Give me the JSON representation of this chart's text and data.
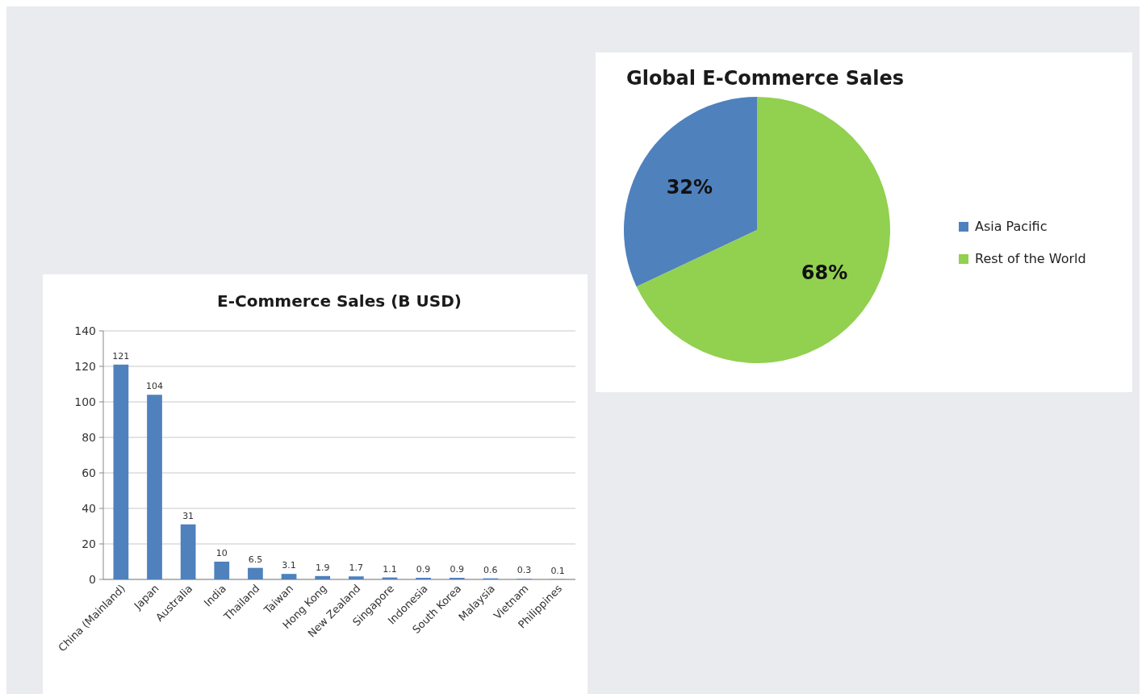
{
  "chart_data": [
    {
      "type": "pie",
      "title": "Global E-Commerce Sales",
      "categories": [
        "Asia Pacific",
        "Rest of the World"
      ],
      "values": [
        32,
        68
      ],
      "colors": [
        "#4f81bd",
        "#92d050"
      ],
      "value_labels": [
        "32%",
        "68%"
      ],
      "legend": "right"
    },
    {
      "type": "bar",
      "title": "E-Commerce Sales (B USD)",
      "categories": [
        "China (Mainland)",
        "Japan",
        "Australia",
        "India",
        "Thailand",
        "Taiwan",
        "Hong Kong",
        "New Zealand",
        "Singapore",
        "Indonesia",
        "South Korea",
        "Malaysia",
        "Vietnam",
        "Philippines"
      ],
      "values": [
        121,
        104,
        31,
        10,
        6.5,
        3.1,
        1.9,
        1.7,
        1.1,
        0.9,
        0.9,
        0.6,
        0.3,
        0.1
      ],
      "color": "#4f81bd",
      "ylim": [
        0,
        140
      ],
      "yticks": [
        0,
        20,
        40,
        60,
        80,
        100,
        120,
        140
      ],
      "grid": "y",
      "data_labels": true
    }
  ]
}
